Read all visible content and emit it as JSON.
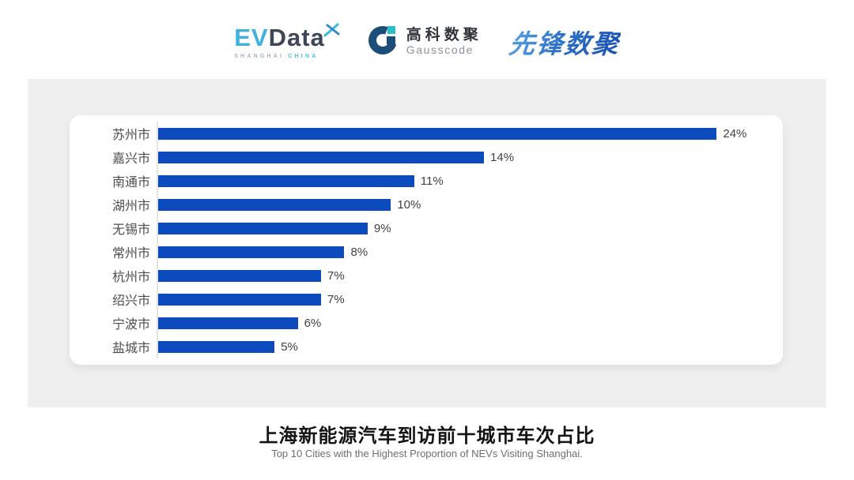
{
  "header": {
    "evdata_logo": {
      "ev": "EV",
      "data": "Data",
      "sub_left": "SHANGHAI",
      "sub_right": "CHINA"
    },
    "gausscode_logo": {
      "cn": "高科数聚",
      "en": "Gausscode"
    },
    "xianfeng_logo": {
      "text": "先锋数聚"
    }
  },
  "chart_data": {
    "type": "bar",
    "orientation": "horizontal",
    "categories": [
      "苏州市",
      "嘉兴市",
      "南通市",
      "湖州市",
      "无锡市",
      "常州市",
      "杭州市",
      "绍兴市",
      "宁波市",
      "盐城市"
    ],
    "values": [
      24,
      14,
      11,
      10,
      9,
      8,
      7,
      7,
      6,
      5
    ],
    "value_labels": [
      "24%",
      "14%",
      "11%",
      "10%",
      "9%",
      "8%",
      "7%",
      "7%",
      "6%",
      "5%"
    ],
    "unit": "%",
    "title": "上海新能源汽车到访前十城市车次占比",
    "subtitle": "Top 10 Cities with the Highest Proportion of  NEVs Visiting Shanghai.",
    "bar_color": "#0b4bbd",
    "xlim": [
      0,
      26
    ],
    "grid": false,
    "legend": false,
    "axis_line_color": "#e3e3e3"
  },
  "colors": {
    "panel_bg": "#efefef",
    "card_bg": "#ffffff",
    "bar_blue": "#0b4bbd",
    "evdata_light_blue": "#3fb0e0",
    "evdata_dark": "#3d4757",
    "gausscode_navy": "#1d4e79",
    "gausscode_teal": "#2bbfc9",
    "xianfeng_blue": "#2f73cb"
  }
}
